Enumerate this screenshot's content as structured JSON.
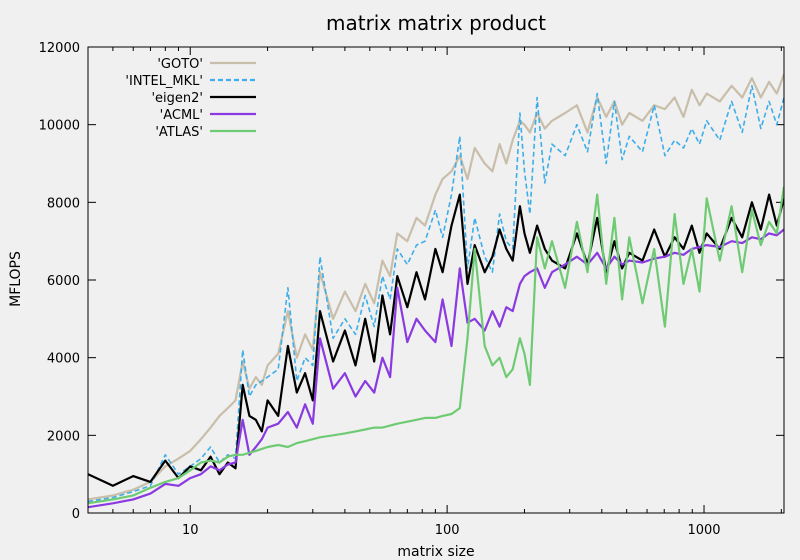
{
  "chart_data": {
    "type": "line",
    "title": "matrix matrix product",
    "xlabel": "matrix size",
    "ylabel": "MFLOPS",
    "x_scale": "log",
    "xlim": [
      4,
      2048
    ],
    "ylim": [
      0,
      12000
    ],
    "x_ticks": [
      10,
      100,
      1000
    ],
    "x_tick_labels": [
      "10",
      "100",
      "1000"
    ],
    "y_ticks": [
      0,
      2000,
      4000,
      6000,
      8000,
      10000,
      12000
    ],
    "y_tick_labels": [
      "0",
      "2000",
      "4000",
      "6000",
      "8000",
      "10000",
      "12000"
    ],
    "grid": false,
    "legend_position": "top-left",
    "series": [
      {
        "name": "'GOTO'",
        "color": "#c8beaa",
        "dash": "solid",
        "x": [
          4,
          5,
          6,
          7,
          8,
          9,
          10,
          11,
          12,
          13,
          14,
          15,
          16,
          17,
          18,
          19,
          20,
          22,
          24,
          26,
          28,
          30,
          32,
          36,
          40,
          44,
          48,
          52,
          56,
          60,
          64,
          70,
          76,
          82,
          90,
          96,
          104,
          112,
          120,
          128,
          140,
          150,
          160,
          170,
          180,
          192,
          200,
          210,
          224,
          240,
          256,
          288,
          320,
          352,
          384,
          416,
          448,
          480,
          512,
          576,
          640,
          704,
          768,
          832,
          896,
          960,
          1024,
          1152,
          1280,
          1408,
          1536,
          1664,
          1792,
          1920,
          2048
        ],
        "y": [
          350,
          450,
          600,
          800,
          1200,
          1400,
          1600,
          1900,
          2200,
          2500,
          2700,
          2900,
          3900,
          3200,
          3500,
          3300,
          3800,
          4100,
          5200,
          4000,
          4600,
          4200,
          6200,
          5000,
          5700,
          5200,
          5900,
          5400,
          6500,
          6100,
          7200,
          7000,
          7600,
          7400,
          8200,
          8600,
          8800,
          9200,
          8600,
          9400,
          9000,
          8800,
          9500,
          9000,
          9600,
          10100,
          10000,
          9800,
          10300,
          9900,
          10100,
          10300,
          10500,
          9800,
          10700,
          10200,
          10600,
          10000,
          10300,
          10100,
          10500,
          10400,
          10700,
          10200,
          10900,
          10500,
          10800,
          10600,
          11000,
          10700,
          11200,
          10700,
          11100,
          10800,
          11300
        ]
      },
      {
        "name": "'INTEL_MKL'",
        "color": "#3daee9",
        "dash": "dashed",
        "x": [
          4,
          5,
          6,
          7,
          8,
          9,
          10,
          11,
          12,
          13,
          14,
          15,
          16,
          17,
          18,
          19,
          20,
          22,
          24,
          26,
          28,
          30,
          32,
          36,
          40,
          44,
          48,
          52,
          56,
          60,
          64,
          70,
          76,
          82,
          90,
          96,
          104,
          112,
          120,
          128,
          140,
          150,
          160,
          170,
          180,
          192,
          200,
          210,
          224,
          240,
          256,
          288,
          320,
          352,
          384,
          416,
          448,
          480,
          512,
          576,
          640,
          704,
          768,
          832,
          896,
          960,
          1024,
          1152,
          1280,
          1408,
          1536,
          1664,
          1792,
          1920,
          2048
        ],
        "y": [
          300,
          400,
          550,
          700,
          1500,
          1000,
          1200,
          1400,
          1700,
          1300,
          1500,
          1400,
          4200,
          3000,
          3300,
          3400,
          3500,
          3700,
          5800,
          3400,
          4000,
          3800,
          6600,
          4500,
          5000,
          4600,
          5600,
          4800,
          6100,
          5500,
          6800,
          6400,
          6900,
          7000,
          7800,
          7100,
          8200,
          9700,
          6300,
          7600,
          6600,
          6200,
          7700,
          7000,
          6800,
          10300,
          8800,
          7700,
          10700,
          8500,
          9500,
          9200,
          10000,
          9300,
          10800,
          9000,
          10600,
          9100,
          9700,
          9300,
          10500,
          9200,
          9600,
          9400,
          9900,
          9500,
          10100,
          9600,
          10600,
          9800,
          11000,
          9900,
          10600,
          10000,
          10700
        ]
      },
      {
        "name": "'eigen2'",
        "color": "#000000",
        "dash": "solid",
        "x": [
          4,
          5,
          6,
          7,
          8,
          9,
          10,
          11,
          12,
          13,
          14,
          15,
          16,
          17,
          18,
          19,
          20,
          22,
          24,
          26,
          28,
          30,
          32,
          36,
          40,
          44,
          48,
          52,
          56,
          60,
          64,
          70,
          76,
          82,
          90,
          96,
          104,
          112,
          120,
          128,
          140,
          150,
          160,
          170,
          180,
          192,
          200,
          210,
          224,
          240,
          256,
          288,
          320,
          352,
          384,
          416,
          448,
          480,
          512,
          576,
          640,
          704,
          768,
          832,
          896,
          960,
          1024,
          1152,
          1280,
          1408,
          1536,
          1664,
          1792,
          1920,
          2048
        ],
        "y": [
          1000,
          700,
          950,
          800,
          1350,
          900,
          1200,
          1100,
          1450,
          1000,
          1300,
          1150,
          3300,
          2500,
          2400,
          2100,
          2900,
          2500,
          4300,
          3100,
          3600,
          2900,
          5200,
          3900,
          4700,
          3800,
          5000,
          3900,
          5600,
          4600,
          6100,
          5300,
          6200,
          5500,
          6800,
          6200,
          7400,
          8200,
          5900,
          6900,
          6200,
          6600,
          7300,
          6800,
          6500,
          7900,
          7200,
          6700,
          7400,
          6800,
          6500,
          6300,
          7200,
          6400,
          7600,
          6200,
          7000,
          6300,
          6700,
          6500,
          7300,
          6600,
          7100,
          6800,
          7400,
          6700,
          7200,
          6800,
          7600,
          7100,
          8000,
          7300,
          8200,
          7400,
          8100
        ]
      },
      {
        "name": "'ACML'",
        "color": "#8a3ae0",
        "dash": "solid",
        "x": [
          4,
          5,
          6,
          7,
          8,
          9,
          10,
          11,
          12,
          13,
          14,
          15,
          16,
          17,
          18,
          19,
          20,
          22,
          24,
          26,
          28,
          30,
          32,
          36,
          40,
          44,
          48,
          52,
          56,
          60,
          64,
          70,
          76,
          82,
          90,
          96,
          104,
          112,
          120,
          128,
          140,
          150,
          160,
          170,
          180,
          192,
          200,
          210,
          224,
          240,
          256,
          288,
          320,
          352,
          384,
          416,
          448,
          480,
          512,
          576,
          640,
          704,
          768,
          832,
          896,
          960,
          1024,
          1152,
          1280,
          1408,
          1536,
          1664,
          1792,
          1920,
          2048
        ],
        "y": [
          150,
          250,
          350,
          500,
          750,
          700,
          900,
          1000,
          1200,
          1100,
          1250,
          1300,
          2400,
          1500,
          1700,
          1900,
          2200,
          2300,
          2600,
          2200,
          2800,
          2300,
          4500,
          3200,
          3600,
          3000,
          3400,
          3100,
          4000,
          3500,
          5800,
          4400,
          5000,
          4700,
          4400,
          5500,
          4300,
          6300,
          4900,
          5000,
          4700,
          5200,
          4800,
          5300,
          5200,
          5900,
          6100,
          6200,
          6300,
          5800,
          6200,
          6400,
          6600,
          6400,
          6700,
          6300,
          6600,
          6400,
          6500,
          6450,
          6550,
          6600,
          6700,
          6650,
          6800,
          6850,
          6900,
          6850,
          7000,
          6950,
          7100,
          7050,
          7200,
          7150,
          7300
        ]
      },
      {
        "name": "'ATLAS'",
        "color": "#6fcb73",
        "dash": "solid",
        "x": [
          4,
          5,
          6,
          7,
          8,
          9,
          10,
          11,
          12,
          13,
          14,
          15,
          16,
          17,
          18,
          19,
          20,
          22,
          24,
          26,
          28,
          30,
          32,
          36,
          40,
          44,
          48,
          52,
          56,
          60,
          64,
          70,
          76,
          82,
          90,
          96,
          104,
          112,
          120,
          128,
          140,
          150,
          160,
          170,
          180,
          192,
          200,
          210,
          224,
          240,
          256,
          288,
          320,
          352,
          384,
          416,
          448,
          480,
          512,
          576,
          640,
          704,
          768,
          832,
          896,
          960,
          1024,
          1152,
          1280,
          1408,
          1536,
          1664,
          1792,
          1920,
          2048
        ],
        "y": [
          250,
          350,
          450,
          650,
          800,
          900,
          1100,
          1300,
          1350,
          1300,
          1450,
          1500,
          1500,
          1550,
          1600,
          1650,
          1700,
          1750,
          1700,
          1800,
          1850,
          1900,
          1950,
          2000,
          2050,
          2100,
          2150,
          2200,
          2200,
          2250,
          2300,
          2350,
          2400,
          2450,
          2450,
          2500,
          2550,
          2700,
          4500,
          6800,
          4300,
          3800,
          4000,
          3500,
          3700,
          4500,
          4100,
          3300,
          7100,
          6300,
          7000,
          5800,
          7500,
          6200,
          8200,
          5900,
          7600,
          5500,
          7100,
          5400,
          6800,
          4800,
          7700,
          5900,
          6800,
          5700,
          8100,
          6500,
          7900,
          6200,
          7800,
          6900,
          7500,
          7200,
          8400
        ]
      }
    ]
  }
}
